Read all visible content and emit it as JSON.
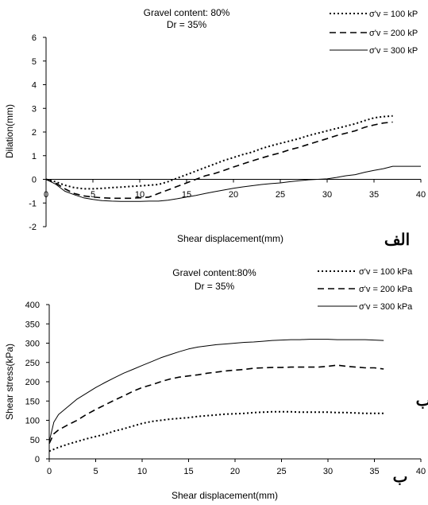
{
  "chart_data": [
    {
      "type": "line",
      "title": "Gravel content: 80%",
      "subtitle": "Dr = 35%",
      "xlabel": "Shear displacement(mm)",
      "ylabel": "Dilation(mm)",
      "xlim": [
        0,
        40
      ],
      "ylim": [
        -2,
        6
      ],
      "xticks": [
        "0",
        "5",
        "10",
        "15",
        "20",
        "25",
        "30",
        "35",
        "40"
      ],
      "yticks": [
        "-2",
        "-1",
        "0",
        "1",
        "2",
        "3",
        "4",
        "5",
        "6"
      ],
      "legend_position": "top-right",
      "marker_label": "الف",
      "series": [
        {
          "name": "σ'v = 100 kP",
          "style": "dotted",
          "points": [
            [
              0,
              0
            ],
            [
              1,
              -0.1
            ],
            [
              2,
              -0.25
            ],
            [
              3,
              -0.35
            ],
            [
              4,
              -0.4
            ],
            [
              5,
              -0.4
            ],
            [
              6,
              -0.38
            ],
            [
              7,
              -0.35
            ],
            [
              8,
              -0.33
            ],
            [
              9,
              -0.3
            ],
            [
              10,
              -0.28
            ],
            [
              11,
              -0.25
            ],
            [
              12,
              -0.22
            ],
            [
              13,
              -0.1
            ],
            [
              14,
              0.05
            ],
            [
              15,
              0.2
            ],
            [
              16,
              0.35
            ],
            [
              17,
              0.5
            ],
            [
              18,
              0.65
            ],
            [
              19,
              0.8
            ],
            [
              20,
              0.92
            ],
            [
              21,
              1.05
            ],
            [
              22,
              1.15
            ],
            [
              23,
              1.3
            ],
            [
              24,
              1.42
            ],
            [
              25,
              1.52
            ],
            [
              26,
              1.62
            ],
            [
              27,
              1.72
            ],
            [
              28,
              1.85
            ],
            [
              29,
              1.95
            ],
            [
              30,
              2.05
            ],
            [
              31,
              2.15
            ],
            [
              32,
              2.25
            ],
            [
              33,
              2.35
            ],
            [
              34,
              2.48
            ],
            [
              35,
              2.6
            ],
            [
              36,
              2.65
            ],
            [
              37,
              2.68
            ]
          ]
        },
        {
          "name": "σ'v = 200 kP",
          "style": "dashed",
          "points": [
            [
              0,
              0
            ],
            [
              1,
              -0.15
            ],
            [
              2,
              -0.4
            ],
            [
              3,
              -0.6
            ],
            [
              4,
              -0.7
            ],
            [
              5,
              -0.75
            ],
            [
              6,
              -0.78
            ],
            [
              7,
              -0.8
            ],
            [
              8,
              -0.8
            ],
            [
              9,
              -0.8
            ],
            [
              10,
              -0.78
            ],
            [
              11,
              -0.75
            ],
            [
              12,
              -0.6
            ],
            [
              13,
              -0.45
            ],
            [
              14,
              -0.3
            ],
            [
              15,
              -0.15
            ],
            [
              16,
              0
            ],
            [
              17,
              0.15
            ],
            [
              18,
              0.25
            ],
            [
              19,
              0.38
            ],
            [
              20,
              0.52
            ],
            [
              21,
              0.65
            ],
            [
              22,
              0.78
            ],
            [
              23,
              0.9
            ],
            [
              24,
              1.02
            ],
            [
              25,
              1.12
            ],
            [
              26,
              1.25
            ],
            [
              27,
              1.35
            ],
            [
              28,
              1.48
            ],
            [
              29,
              1.6
            ],
            [
              30,
              1.72
            ],
            [
              31,
              1.85
            ],
            [
              32,
              1.95
            ],
            [
              33,
              2.05
            ],
            [
              34,
              2.2
            ],
            [
              35,
              2.3
            ],
            [
              36,
              2.38
            ],
            [
              37,
              2.42
            ]
          ]
        },
        {
          "name": "σ'v = 300 kP",
          "style": "solid",
          "points": [
            [
              0,
              0
            ],
            [
              1,
              -0.2
            ],
            [
              2,
              -0.5
            ],
            [
              3,
              -0.65
            ],
            [
              4,
              -0.78
            ],
            [
              5,
              -0.85
            ],
            [
              6,
              -0.9
            ],
            [
              7,
              -0.92
            ],
            [
              8,
              -0.93
            ],
            [
              9,
              -0.93
            ],
            [
              10,
              -0.93
            ],
            [
              11,
              -0.92
            ],
            [
              12,
              -0.92
            ],
            [
              13,
              -0.88
            ],
            [
              14,
              -0.82
            ],
            [
              15,
              -0.75
            ],
            [
              16,
              -0.68
            ],
            [
              17,
              -0.6
            ],
            [
              18,
              -0.52
            ],
            [
              19,
              -0.45
            ],
            [
              20,
              -0.38
            ],
            [
              21,
              -0.32
            ],
            [
              22,
              -0.27
            ],
            [
              23,
              -0.22
            ],
            [
              24,
              -0.18
            ],
            [
              25,
              -0.15
            ],
            [
              26,
              -0.1
            ],
            [
              27,
              -0.06
            ],
            [
              28,
              -0.02
            ],
            [
              29,
              0
            ],
            [
              30,
              0.02
            ],
            [
              31,
              0.08
            ],
            [
              32,
              0.15
            ],
            [
              33,
              0.2
            ],
            [
              34,
              0.3
            ],
            [
              35,
              0.38
            ],
            [
              36,
              0.45
            ],
            [
              37,
              0.55
            ],
            [
              40,
              0.55
            ]
          ]
        }
      ]
    },
    {
      "type": "line",
      "title": "Gravel content:80%",
      "subtitle": "Dr = 35%",
      "xlabel": "Shear displacement(mm)",
      "ylabel": "Shear stress(kPa)",
      "xlim": [
        0,
        40
      ],
      "ylim": [
        0,
        400
      ],
      "xticks": [
        "0",
        "5",
        "10",
        "15",
        "20",
        "25",
        "30",
        "35",
        "40"
      ],
      "yticks": [
        "0",
        "50",
        "100",
        "150",
        "200",
        "250",
        "300",
        "350",
        "400"
      ],
      "legend_position": "top-right",
      "marker_label": "ب",
      "series": [
        {
          "name": "σ'v = 100 kPa",
          "style": "dotted",
          "points": [
            [
              0,
              20
            ],
            [
              1,
              30
            ],
            [
              2,
              38
            ],
            [
              3,
              45
            ],
            [
              4,
              52
            ],
            [
              5,
              58
            ],
            [
              6,
              64
            ],
            [
              7,
              72
            ],
            [
              8,
              78
            ],
            [
              9,
              85
            ],
            [
              10,
              92
            ],
            [
              11,
              97
            ],
            [
              12,
              100
            ],
            [
              13,
              103
            ],
            [
              14,
              105
            ],
            [
              15,
              107
            ],
            [
              16,
              110
            ],
            [
              17,
              112
            ],
            [
              18,
              114
            ],
            [
              19,
              116
            ],
            [
              20,
              117
            ],
            [
              21,
              118
            ],
            [
              22,
              120
            ],
            [
              23,
              121
            ],
            [
              24,
              122
            ],
            [
              25,
              122
            ],
            [
              26,
              122
            ],
            [
              27,
              121
            ],
            [
              28,
              121
            ],
            [
              29,
              121
            ],
            [
              30,
              121
            ],
            [
              31,
              120
            ],
            [
              32,
              120
            ],
            [
              33,
              119
            ],
            [
              34,
              118
            ],
            [
              35,
              118
            ],
            [
              36,
              118
            ]
          ]
        },
        {
          "name": "σ'v = 200 kPa",
          "style": "dashed",
          "points": [
            [
              0,
              40
            ],
            [
              0.5,
              65
            ],
            [
              1,
              75
            ],
            [
              2,
              88
            ],
            [
              3,
              100
            ],
            [
              4,
              115
            ],
            [
              5,
              128
            ],
            [
              6,
              140
            ],
            [
              7,
              152
            ],
            [
              8,
              163
            ],
            [
              9,
              175
            ],
            [
              10,
              185
            ],
            [
              11,
              192
            ],
            [
              12,
              200
            ],
            [
              13,
              207
            ],
            [
              14,
              212
            ],
            [
              15,
              215
            ],
            [
              16,
              218
            ],
            [
              17,
              222
            ],
            [
              18,
              225
            ],
            [
              19,
              228
            ],
            [
              20,
              230
            ],
            [
              21,
              232
            ],
            [
              22,
              235
            ],
            [
              23,
              236
            ],
            [
              24,
              237
            ],
            [
              25,
              237
            ],
            [
              26,
              238
            ],
            [
              27,
              238
            ],
            [
              28,
              238
            ],
            [
              29,
              238
            ],
            [
              30,
              240
            ],
            [
              31,
              243
            ],
            [
              32,
              240
            ],
            [
              33,
              238
            ],
            [
              34,
              236
            ],
            [
              35,
              236
            ],
            [
              36,
              233
            ]
          ]
        },
        {
          "name": "σ'v = 300 kPa",
          "style": "solid",
          "points": [
            [
              0,
              45
            ],
            [
              0.5,
              95
            ],
            [
              1,
              115
            ],
            [
              2,
              135
            ],
            [
              3,
              155
            ],
            [
              4,
              170
            ],
            [
              5,
              185
            ],
            [
              6,
              198
            ],
            [
              7,
              210
            ],
            [
              8,
              222
            ],
            [
              9,
              232
            ],
            [
              10,
              242
            ],
            [
              11,
              252
            ],
            [
              12,
              262
            ],
            [
              13,
              270
            ],
            [
              14,
              278
            ],
            [
              15,
              285
            ],
            [
              16,
              290
            ],
            [
              17,
              293
            ],
            [
              18,
              296
            ],
            [
              19,
              298
            ],
            [
              20,
              300
            ],
            [
              21,
              302
            ],
            [
              22,
              303
            ],
            [
              23,
              305
            ],
            [
              24,
              307
            ],
            [
              25,
              308
            ],
            [
              26,
              309
            ],
            [
              27,
              309
            ],
            [
              28,
              310
            ],
            [
              29,
              310
            ],
            [
              30,
              310
            ],
            [
              31,
              309
            ],
            [
              32,
              309
            ],
            [
              33,
              309
            ],
            [
              34,
              309
            ],
            [
              35,
              308
            ],
            [
              36,
              307
            ]
          ]
        }
      ]
    }
  ],
  "page": {
    "overlap_char": "ب"
  }
}
